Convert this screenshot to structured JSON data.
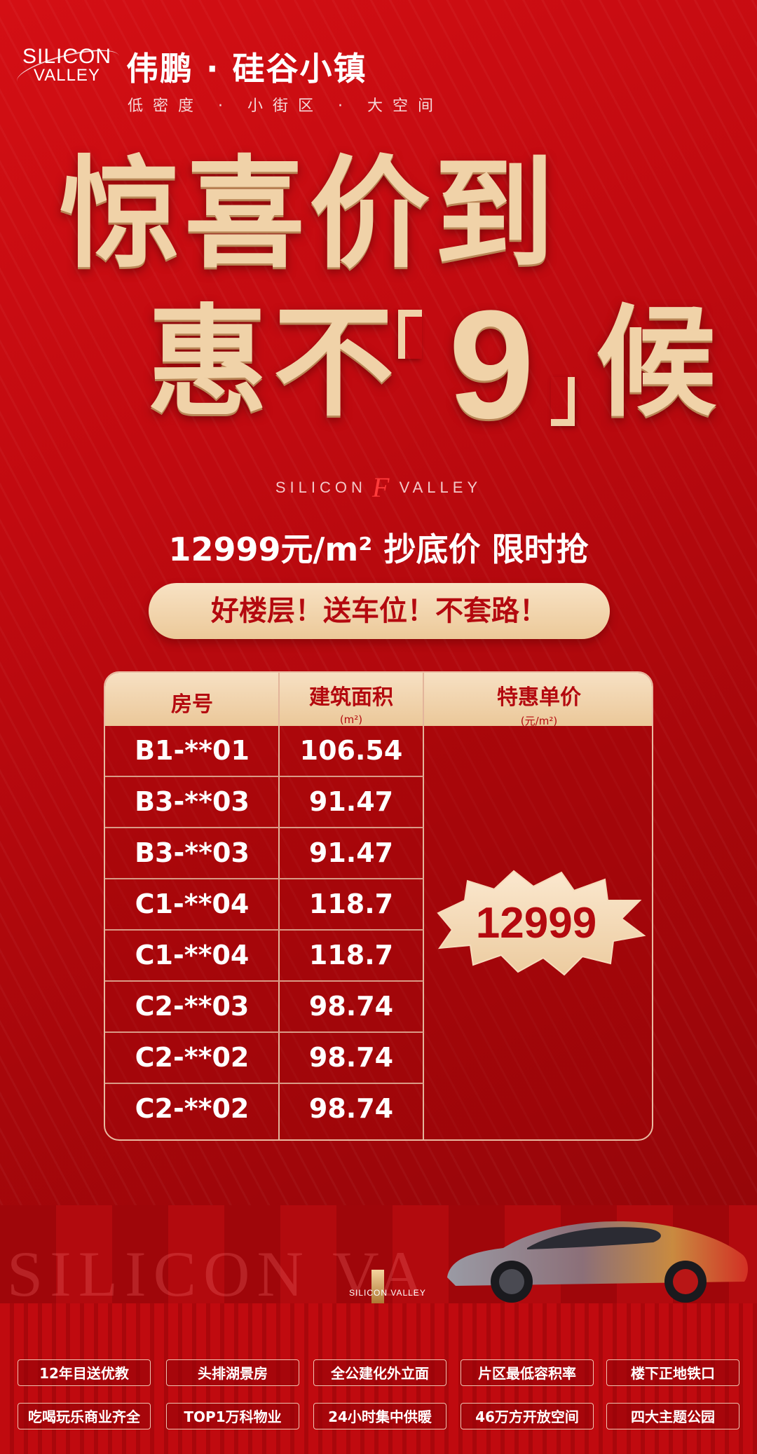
{
  "header": {
    "logo_line1": "SILICON",
    "logo_line2": "VALLEY",
    "brand_name": "伟鹏 · 硅谷小镇",
    "tagline": "低密度 · 小街区 · 大空间"
  },
  "headline": {
    "line1": "惊喜价到",
    "line2_a": "惠",
    "line2_b": "不",
    "line2_number": "9",
    "line2_c": "候"
  },
  "mid_logo": {
    "left": "SILICON",
    "mark": "F",
    "right": "VALLEY"
  },
  "offer": {
    "price_line": "12999元/m² 抄底价 限时抢",
    "pill_text": "好楼层！送车位！不套路！"
  },
  "table": {
    "headers": [
      {
        "title": "房号",
        "unit": ""
      },
      {
        "title": "建筑面积",
        "unit": "(m²)"
      },
      {
        "title": "特惠单价",
        "unit": "(元/m²)"
      }
    ],
    "rows": [
      {
        "room": "B1-**01",
        "area": "106.54"
      },
      {
        "room": "B3-**03",
        "area": "91.47"
      },
      {
        "room": "B3-**03",
        "area": "91.47"
      },
      {
        "room": "C1-**04",
        "area": "118.7"
      },
      {
        "room": "C1-**04",
        "area": "118.7"
      },
      {
        "room": "C2-**03",
        "area": "98.74"
      },
      {
        "room": "C2-**02",
        "area": "98.74"
      },
      {
        "room": "C2-**02",
        "area": "98.74"
      }
    ],
    "special_price": "12999"
  },
  "band": {
    "bg_word": "SILICON VA",
    "small_logo": "SILICON VALLEY"
  },
  "features": [
    "12年目送优教",
    "头排湖景房",
    "全公建化外立面",
    "片区最低容积率",
    "楼下正地铁口",
    "吃喝玩乐商业齐全",
    "TOP1万科物业",
    "24小时集中供暖",
    "46万方开放空间",
    "四大主题公园"
  ],
  "colors": {
    "background": "#b0080c",
    "gold": "#f0d2a8",
    "accent_red": "#b4090f"
  }
}
